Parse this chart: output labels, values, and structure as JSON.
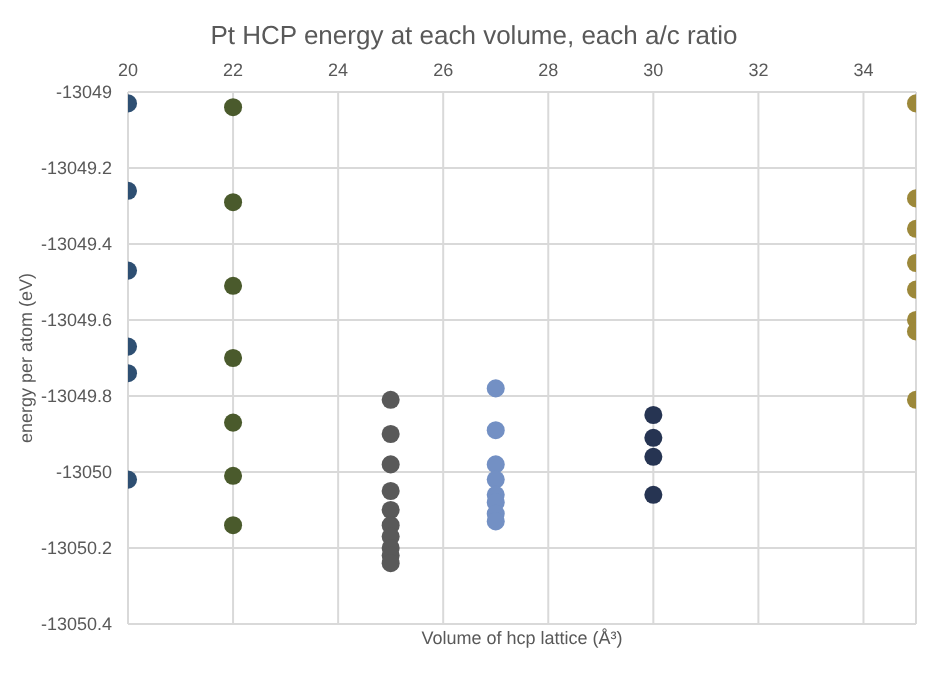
{
  "chart_data": {
    "type": "scatter",
    "title": "Pt HCP energy at each volume, each a/c ratio",
    "xlabel": "Volume of hcp lattice (Å³)",
    "ylabel": "energy per atom (eV)",
    "xlim": [
      20,
      35
    ],
    "xticks": [
      20,
      22,
      24,
      26,
      28,
      30,
      32,
      34
    ],
    "ylim": [
      -13050.4,
      -13049
    ],
    "yticks": [
      -13050.4,
      -13050.2,
      -13050,
      -13049.8,
      -13049.6,
      -13049.4,
      -13049.2,
      -13049
    ],
    "grid": true,
    "marker": "circle",
    "legend": false,
    "series": [
      {
        "color": "#2e4f72",
        "x": [
          20,
          20,
          20,
          20,
          20,
          20
        ],
        "values": [
          -13049.03,
          -13049.26,
          -13049.47,
          -13049.67,
          -13049.74,
          -13050.02
        ]
      },
      {
        "color": "#4a5a2c",
        "x": [
          22,
          22,
          22,
          22,
          22,
          22,
          22
        ],
        "values": [
          -13049.04,
          -13049.29,
          -13049.51,
          -13049.7,
          -13049.87,
          -13050.01,
          -13050.14
        ]
      },
      {
        "color": "#595959",
        "x": [
          25,
          25,
          25,
          25,
          25,
          25,
          25,
          25,
          25,
          25
        ],
        "values": [
          -13049.81,
          -13049.9,
          -13049.98,
          -13050.05,
          -13050.1,
          -13050.14,
          -13050.17,
          -13050.2,
          -13050.22,
          -13050.24
        ]
      },
      {
        "color": "#7390c4",
        "x": [
          27,
          27,
          27,
          27,
          27,
          27,
          27,
          27
        ],
        "values": [
          -13049.78,
          -13049.89,
          -13049.98,
          -13050.02,
          -13050.06,
          -13050.08,
          -13050.11,
          -13050.13
        ]
      },
      {
        "color": "#263452",
        "x": [
          30,
          30,
          30,
          30
        ],
        "values": [
          -13049.85,
          -13049.91,
          -13049.96,
          -13050.06
        ]
      },
      {
        "color": "#9c883a",
        "x": [
          35,
          35,
          35,
          35,
          35,
          35,
          35,
          35
        ],
        "values": [
          -13049.03,
          -13049.28,
          -13049.36,
          -13049.45,
          -13049.52,
          -13049.6,
          -13049.63,
          -13049.81
        ]
      }
    ]
  }
}
